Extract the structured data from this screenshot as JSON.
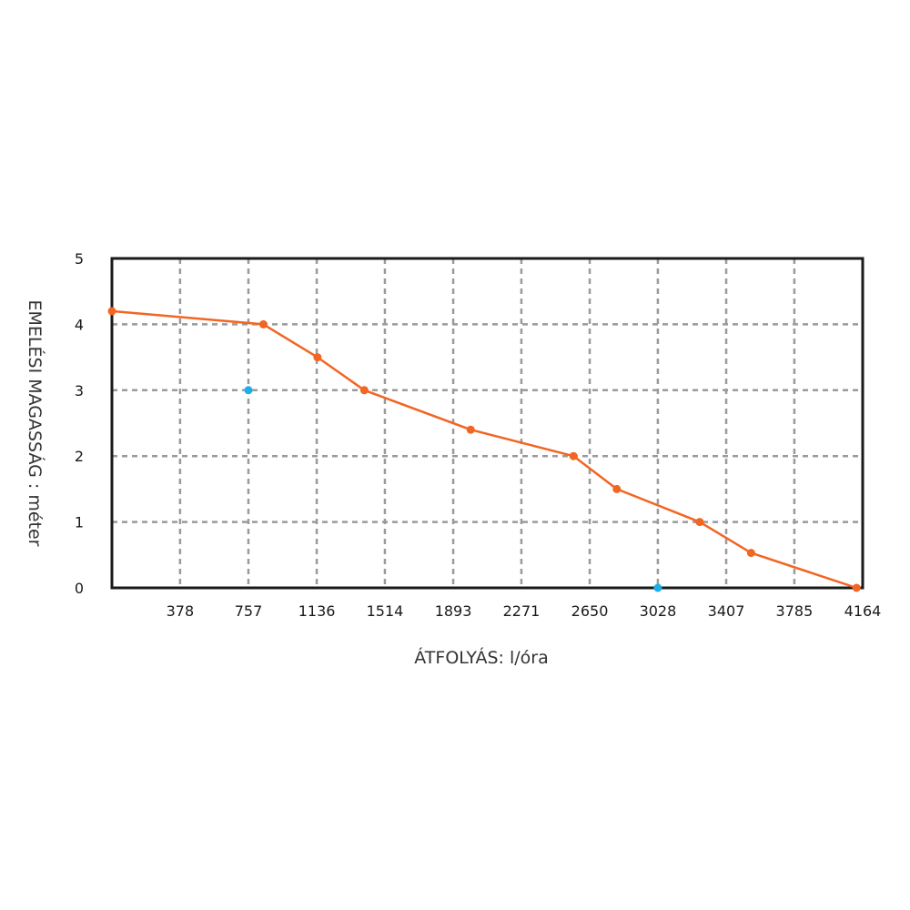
{
  "chart_data": {
    "type": "line",
    "xlabel": "ÁTFOLYÁS: l/óra",
    "ylabel": "EMELÉSI MAGASSÁG : méter",
    "xlim": [
      0,
      4164
    ],
    "ylim": [
      0,
      5
    ],
    "x_ticks": [
      378,
      757,
      1136,
      1514,
      1893,
      2271,
      2650,
      3028,
      3407,
      3785,
      4164
    ],
    "y_ticks": [
      0,
      1,
      2,
      3,
      4,
      5
    ],
    "grid": true,
    "series": [
      {
        "color": "#f26522",
        "points": [
          {
            "x": 0,
            "y": 4.2
          },
          {
            "x": 840,
            "y": 4.0
          },
          {
            "x": 1140,
            "y": 3.5
          },
          {
            "x": 1400,
            "y": 3.0
          },
          {
            "x": 1990,
            "y": 2.4
          },
          {
            "x": 2560,
            "y": 2.0
          },
          {
            "x": 2800,
            "y": 1.5
          },
          {
            "x": 3260,
            "y": 1.0
          },
          {
            "x": 3545,
            "y": 0.53
          },
          {
            "x": 4130,
            "y": 0.0
          }
        ]
      }
    ],
    "markers": [
      {
        "x": 757,
        "y": 3.0,
        "color": "#1ab0e8"
      },
      {
        "x": 3028,
        "y": 0.0,
        "color": "#1ab0e8"
      }
    ],
    "colors": {
      "frame": "#1a1a1a",
      "grid": "#9a9a9a",
      "line": "#f26522",
      "marker": "#1ab0e8"
    }
  }
}
